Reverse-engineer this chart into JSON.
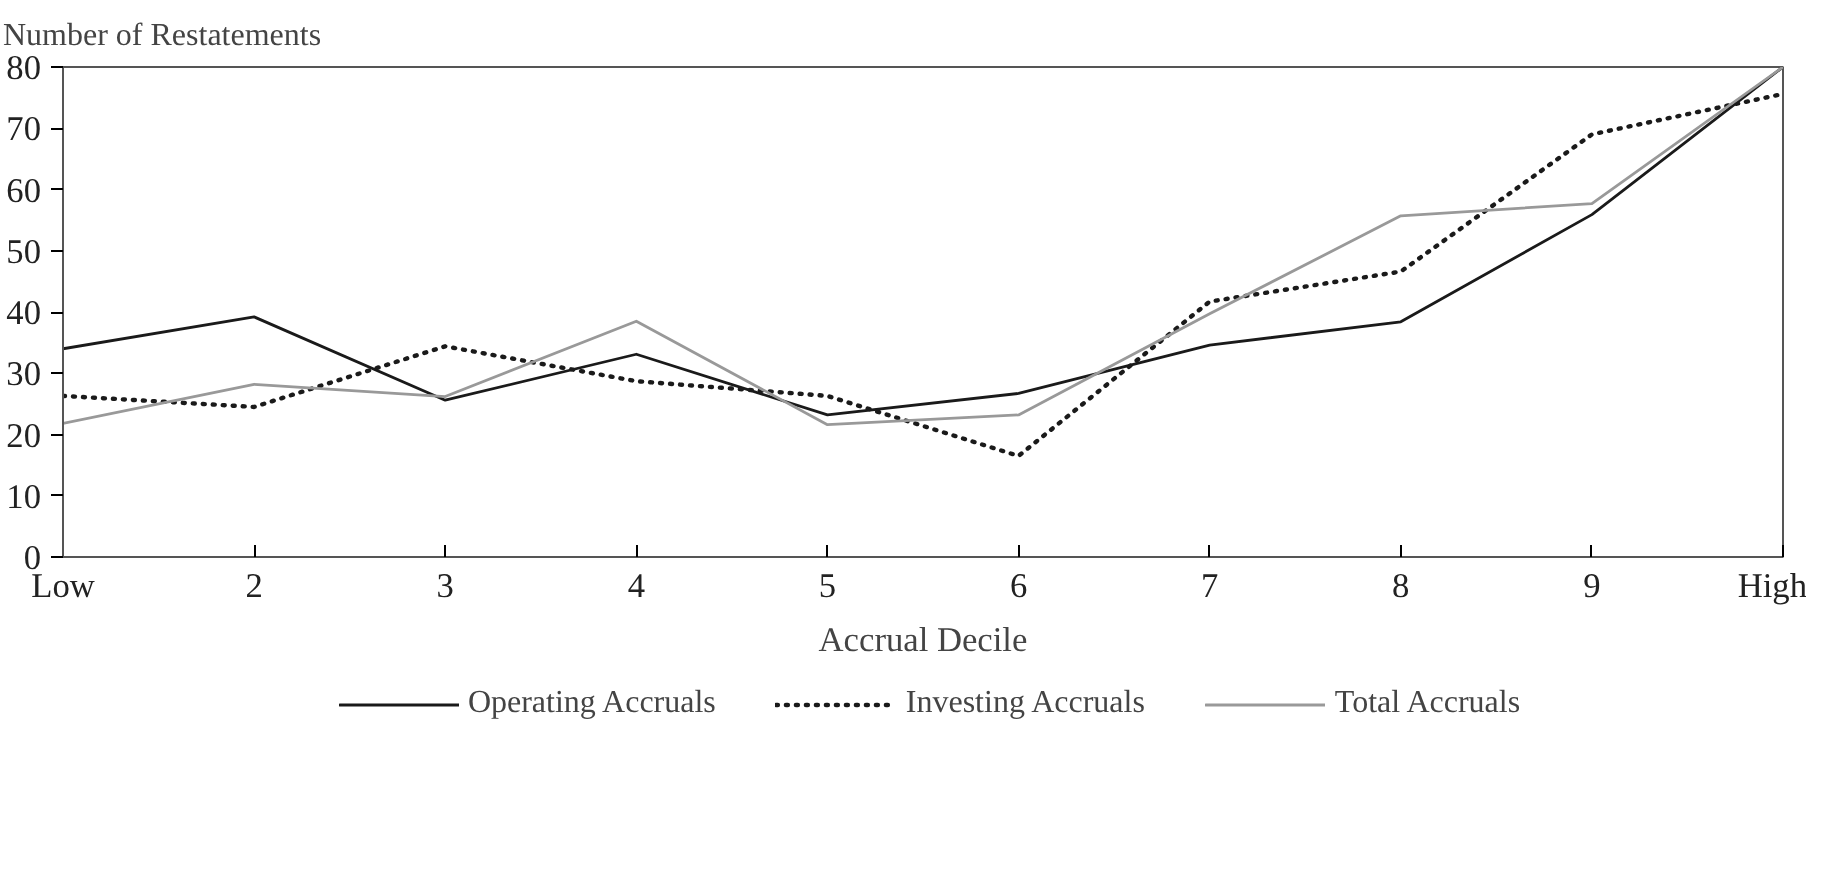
{
  "chart_data": {
    "type": "line",
    "ylabel": "Number of Restatements",
    "xlabel": "Accrual Decile",
    "categories": [
      "Low",
      "2",
      "3",
      "4",
      "5",
      "6",
      "7",
      "8",
      "9",
      "High"
    ],
    "ylim": [
      0,
      80
    ],
    "yticks": [
      0,
      10,
      20,
      30,
      40,
      50,
      60,
      70,
      80
    ],
    "grid": false,
    "legend": "bottom",
    "marker": "none",
    "series": [
      {
        "name": "Operating Accruals",
        "color": "#1a1a1a",
        "line_style": "solid",
        "values": [
          34.0,
          39.2,
          25.6,
          33.1,
          23.2,
          26.7,
          34.6,
          38.4,
          55.9,
          80.0
        ]
      },
      {
        "name": "Investing Accruals",
        "color": "#1a1a1a",
        "line_style": "dotted",
        "values": [
          26.3,
          24.5,
          34.4,
          28.7,
          26.3,
          16.5,
          41.7,
          46.6,
          69.0,
          75.6
        ]
      },
      {
        "name": "Total Accruals",
        "color": "#999999",
        "line_style": "solid",
        "values": [
          21.8,
          28.2,
          26.2,
          38.5,
          21.6,
          23.2,
          39.7,
          55.7,
          57.7,
          80.0
        ]
      }
    ]
  }
}
